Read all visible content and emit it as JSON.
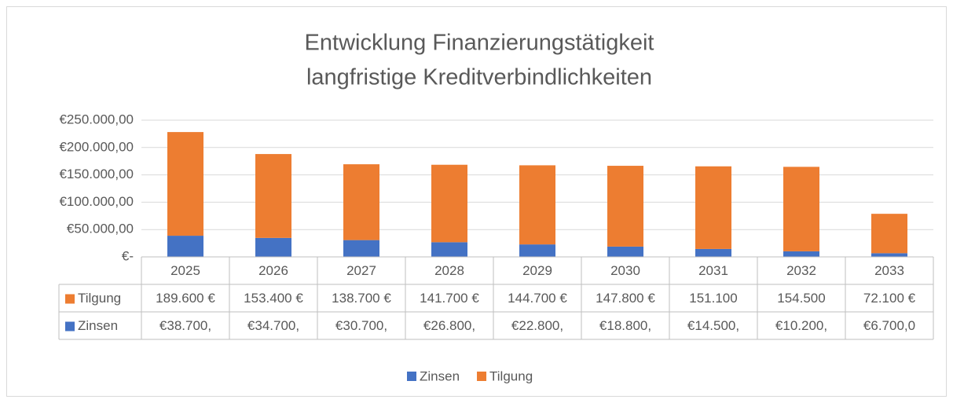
{
  "chart_data": {
    "type": "stacked-bar",
    "title": [
      "Entwicklung Finanzierungstätigkeit",
      "langfristige Kreditverbindlichkeiten"
    ],
    "categories": [
      "2025",
      "2026",
      "2027",
      "2028",
      "2029",
      "2030",
      "2031",
      "2032",
      "2033"
    ],
    "series": [
      {
        "name": "Zinsen",
        "color": "#4472c4",
        "values": [
          38700,
          34700,
          30700,
          26800,
          22800,
          18800,
          14500,
          10200,
          6700
        ],
        "value_labels": [
          "€38.700,",
          "€34.700,",
          "€30.700,",
          "€26.800,",
          "€22.800,",
          "€18.800,",
          "€14.500,",
          "€10.200,",
          "€6.700,0"
        ]
      },
      {
        "name": "Tilgung",
        "color": "#ed7d31",
        "values": [
          189600,
          153400,
          138700,
          141700,
          144700,
          147800,
          151100,
          154500,
          72100
        ],
        "value_labels": [
          "189.600 €",
          "153.400 €",
          "138.700 €",
          "141.700 €",
          "144.700 €",
          "147.800 €",
          "151.100",
          "154.500",
          "72.100 €"
        ]
      }
    ],
    "ylim": [
      0,
      250000
    ],
    "yticks": [
      {
        "value": 0,
        "label": "€-"
      },
      {
        "value": 50000,
        "label": "€50.000,00"
      },
      {
        "value": 100000,
        "label": "€100.000,00"
      },
      {
        "value": 150000,
        "label": "€150.000,00"
      },
      {
        "value": 200000,
        "label": "€200.000,00"
      },
      {
        "value": 250000,
        "label": "€250.000,00"
      }
    ],
    "grid": true,
    "legend": "bottom"
  }
}
